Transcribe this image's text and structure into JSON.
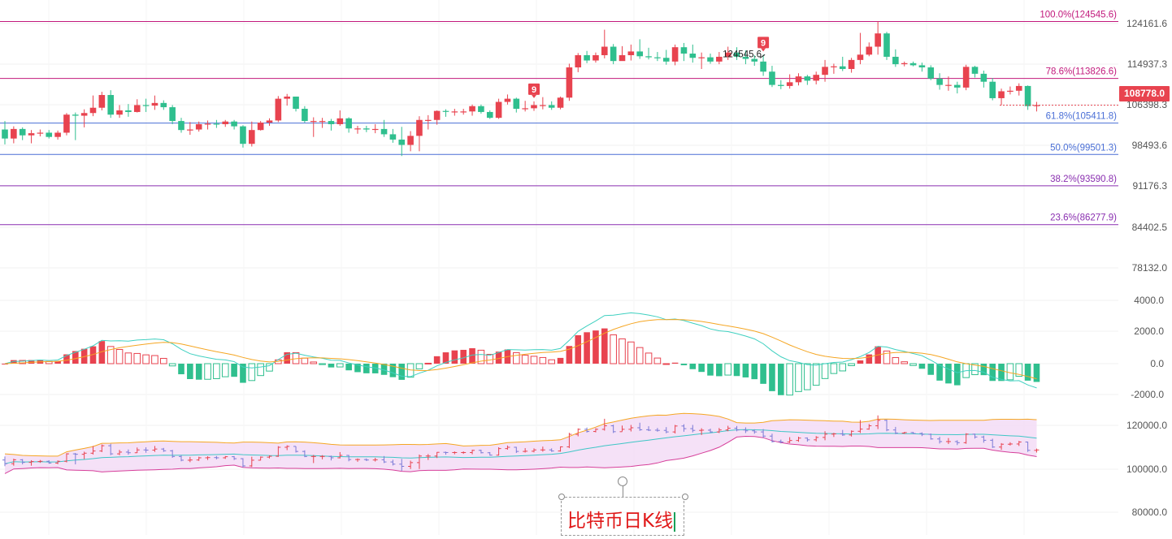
{
  "chart_data": {
    "type": "candlestick",
    "title": "",
    "colors": {
      "up": "#e8434f",
      "down": "#2fbf8e",
      "fib_line": "#c2197c",
      "fib_line_blue": "#4a6fd6",
      "fib_line_teal": "#2a8a8a",
      "macd_dif": "#3fd0c0",
      "macd_dea": "#f5a623",
      "boll_upper": "#f5a623",
      "boll_mid": "#3fc6c6",
      "boll_lower": "#d63f9a",
      "boll_fill": "#f3dcf6"
    },
    "price_axis": {
      "ticks": [
        "124161.6",
        "114937.3",
        "106398.3",
        "98493.6",
        "91176.3",
        "84402.5",
        "78132.0"
      ],
      "range": [
        78132,
        124161.6
      ]
    },
    "current_price": {
      "label": "108778.0",
      "value": 108778.0
    },
    "fib_levels": [
      {
        "label": "100.0%(124545.6)",
        "value": 124545.6,
        "color": "#c2197c"
      },
      {
        "label": "78.6%(113826.6)",
        "value": 113826.6,
        "color": "#c2197c"
      },
      {
        "label": "61.8%(105411.8)",
        "value": 105411.8,
        "color": "#4a6fd6"
      },
      {
        "label": "50.0%(99501.3)",
        "value": 99501.3,
        "color": "#4a6fd6"
      },
      {
        "label": "38.2%(93590.8)",
        "value": 93590.8,
        "color": "#8a2fb0"
      },
      {
        "label": "23.6%(86277.9)",
        "value": 86277.9,
        "color": "#8a2fb0"
      }
    ],
    "annotations": [
      {
        "text": "9",
        "candle": 60,
        "kind": "badge"
      },
      {
        "text": "9",
        "candle": 86,
        "kind": "badge"
      },
      {
        "text": "124545.6",
        "candle": 86,
        "kind": "high-label"
      }
    ],
    "candles": [
      [
        104200,
        102500,
        105800,
        101400
      ],
      [
        102500,
        104300,
        104800,
        101600
      ],
      [
        104300,
        103100,
        104600,
        102200
      ],
      [
        103100,
        103500,
        104100,
        101600
      ],
      [
        103500,
        103600,
        104200,
        102900
      ],
      [
        103600,
        102800,
        104100,
        102500
      ],
      [
        102800,
        103600,
        104000,
        102300
      ],
      [
        103600,
        107000,
        107300,
        103100
      ],
      [
        107000,
        106800,
        107400,
        102200
      ],
      [
        106800,
        107300,
        108000,
        104600
      ],
      [
        107300,
        108300,
        110600,
        106700
      ],
      [
        108300,
        110700,
        111300,
        107800
      ],
      [
        110700,
        107000,
        111600,
        106400
      ],
      [
        107000,
        107800,
        108800,
        106400
      ],
      [
        107800,
        107500,
        109000,
        106600
      ],
      [
        107500,
        108800,
        109900,
        107400
      ],
      [
        108800,
        108700,
        110000,
        107500
      ],
      [
        108700,
        109200,
        110600,
        107900
      ],
      [
        109200,
        108400,
        109700,
        107900
      ],
      [
        108400,
        105800,
        108800,
        105200
      ],
      [
        105800,
        104100,
        106400,
        103600
      ],
      [
        104100,
        104200,
        105600,
        103200
      ],
      [
        104200,
        105200,
        105700,
        103800
      ],
      [
        105200,
        105300,
        105900,
        104200
      ],
      [
        105300,
        105200,
        106000,
        104500
      ],
      [
        105200,
        105700,
        106000,
        104700
      ],
      [
        105700,
        104800,
        106000,
        104200
      ],
      [
        104800,
        101500,
        105000,
        100800
      ],
      [
        101500,
        104100,
        105700,
        101000
      ],
      [
        104100,
        105500,
        105800,
        104000
      ],
      [
        105500,
        105900,
        106300,
        104900
      ],
      [
        105900,
        110000,
        110500,
        105600
      ],
      [
        110000,
        110400,
        110900,
        108700
      ],
      [
        110400,
        108100,
        110400,
        107600
      ],
      [
        108100,
        105800,
        108600,
        105500
      ],
      [
        105800,
        105800,
        106500,
        102800
      ],
      [
        105800,
        105800,
        106400,
        104500
      ],
      [
        105800,
        105200,
        106200,
        104000
      ],
      [
        105200,
        106300,
        107800,
        104900
      ],
      [
        106300,
        104400,
        106500,
        103600
      ],
      [
        104400,
        104400,
        104900,
        103400
      ],
      [
        104400,
        104200,
        104900,
        103700
      ],
      [
        104200,
        104300,
        105200,
        103500
      ],
      [
        104300,
        103300,
        106000,
        102800
      ],
      [
        103300,
        102300,
        104300,
        101700
      ],
      [
        102300,
        101300,
        104700,
        99200
      ],
      [
        101300,
        103000,
        103900,
        100100
      ],
      [
        103000,
        106000,
        106700,
        100100
      ],
      [
        106000,
        106000,
        106900,
        104200
      ],
      [
        106000,
        107700,
        107800,
        105100
      ],
      [
        107700,
        107600,
        108000,
        106600
      ],
      [
        107600,
        107600,
        108100,
        106800
      ],
      [
        107600,
        107600,
        108100,
        107000
      ],
      [
        107600,
        108600,
        108900,
        106800
      ],
      [
        108600,
        107500,
        108900,
        107200
      ],
      [
        107500,
        106400,
        107800,
        106200
      ],
      [
        106400,
        109400,
        110000,
        106200
      ],
      [
        109400,
        110000,
        110800,
        108900
      ],
      [
        110000,
        108100,
        110200,
        107400
      ],
      [
        108100,
        108200,
        109600,
        107600
      ],
      [
        108200,
        108800,
        109500,
        107700
      ],
      [
        108800,
        108800,
        110300,
        108000
      ],
      [
        108800,
        108300,
        109500,
        107900
      ],
      [
        108300,
        110200,
        110400,
        108000
      ],
      [
        110200,
        115900,
        116600,
        109600
      ],
      [
        115900,
        118200,
        118600,
        115000
      ],
      [
        118200,
        117200,
        119000,
        116700
      ],
      [
        117200,
        118200,
        118700,
        116800
      ],
      [
        118200,
        119800,
        123000,
        117600
      ],
      [
        119800,
        117100,
        120300,
        116500
      ],
      [
        117100,
        118200,
        119900,
        117200
      ],
      [
        118200,
        118900,
        120200,
        117200
      ],
      [
        118900,
        118000,
        121200,
        117500
      ],
      [
        118000,
        117800,
        119600,
        117400
      ],
      [
        117800,
        117700,
        118800,
        117100
      ],
      [
        117700,
        117000,
        119200,
        116400
      ],
      [
        117000,
        119700,
        120200,
        116300
      ],
      [
        119700,
        118500,
        120500,
        117100
      ],
      [
        118500,
        117700,
        120200,
        116800
      ],
      [
        117700,
        117800,
        118700,
        115600
      ],
      [
        117800,
        117000,
        118500,
        116600
      ],
      [
        117000,
        117900,
        118800,
        116500
      ],
      [
        117900,
        118700,
        119800,
        117300
      ],
      [
        118700,
        117900,
        119700,
        117300
      ],
      [
        117900,
        117500,
        119100,
        116500
      ],
      [
        117500,
        117000,
        118200,
        116200
      ],
      [
        117000,
        115100,
        118300,
        114300
      ],
      [
        115100,
        112600,
        116200,
        112200
      ],
      [
        112600,
        112400,
        113500,
        111800
      ],
      [
        112400,
        113100,
        114600,
        111900
      ],
      [
        113100,
        114200,
        114800,
        112500
      ],
      [
        114200,
        113400,
        114500,
        112600
      ],
      [
        113400,
        114500,
        115100,
        112700
      ],
      [
        114500,
        116000,
        117300,
        113200
      ],
      [
        116000,
        116100,
        116600,
        114700
      ],
      [
        116100,
        115600,
        117900,
        115200
      ],
      [
        115600,
        117300,
        117700,
        114900
      ],
      [
        117300,
        118300,
        122400,
        116500
      ],
      [
        118300,
        119800,
        120600,
        118000
      ],
      [
        119800,
        122300,
        124545.6,
        118300
      ],
      [
        122300,
        117900,
        122600,
        117300
      ],
      [
        117900,
        116500,
        119300,
        116000
      ],
      [
        116500,
        116700,
        117000,
        116100
      ],
      [
        116700,
        116300,
        117000,
        116100
      ],
      [
        116300,
        115900,
        116800,
        115100
      ],
      [
        115900,
        113800,
        116300,
        113500
      ],
      [
        113800,
        112600,
        114800,
        111700
      ],
      [
        112600,
        112600,
        114200,
        111500
      ],
      [
        112600,
        112100,
        113200,
        111000
      ],
      [
        112100,
        116000,
        116400,
        111600
      ],
      [
        116000,
        114700,
        116200,
        114000
      ],
      [
        114700,
        113200,
        115300,
        112100
      ],
      [
        113200,
        110100,
        113900,
        109700
      ],
      [
        110100,
        111400,
        111900,
        108800
      ],
      [
        111400,
        111500,
        112300,
        110800
      ],
      [
        111500,
        112400,
        112900,
        110600
      ],
      [
        112400,
        108600,
        112500,
        107900
      ],
      [
        108600,
        108778,
        109400,
        107600
      ]
    ]
  },
  "macd": {
    "axis_ticks": [
      "4000.0",
      "2000.0",
      "0.0",
      "-2000.0"
    ],
    "range": [
      -2000,
      4000
    ]
  },
  "boll": {
    "axis_ticks": [
      "120000.0",
      "100000.0",
      "80000.0"
    ],
    "range": [
      80000,
      120000
    ]
  },
  "caption": {
    "text": "比特币日K线"
  }
}
